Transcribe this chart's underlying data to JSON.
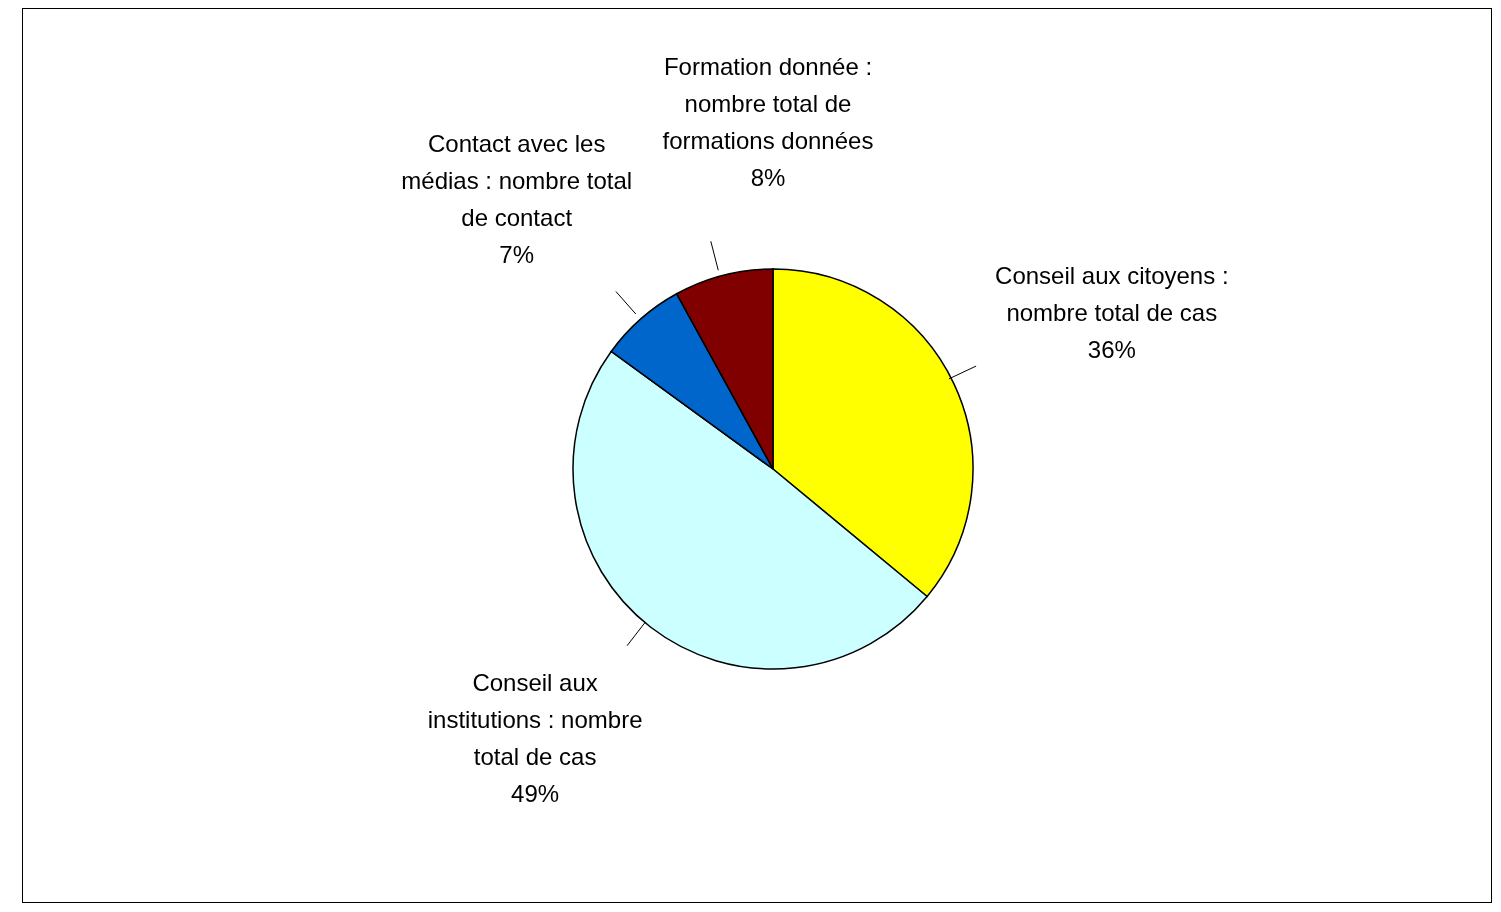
{
  "chart_data": {
    "type": "pie",
    "categories": [
      "Conseil aux citoyens : nombre total de cas",
      "Conseil aux institutions : nombre total de cas",
      "Contact avec les médias : nombre total de contact",
      "Formation donnée : nombre total de formations données"
    ],
    "values": [
      36,
      49,
      7,
      8
    ],
    "value_labels": [
      "36%",
      "49%",
      "7%",
      "8%"
    ],
    "colors": [
      "#ffff00",
      "#ccffff",
      "#0066cc",
      "#800000"
    ],
    "legend": false
  }
}
